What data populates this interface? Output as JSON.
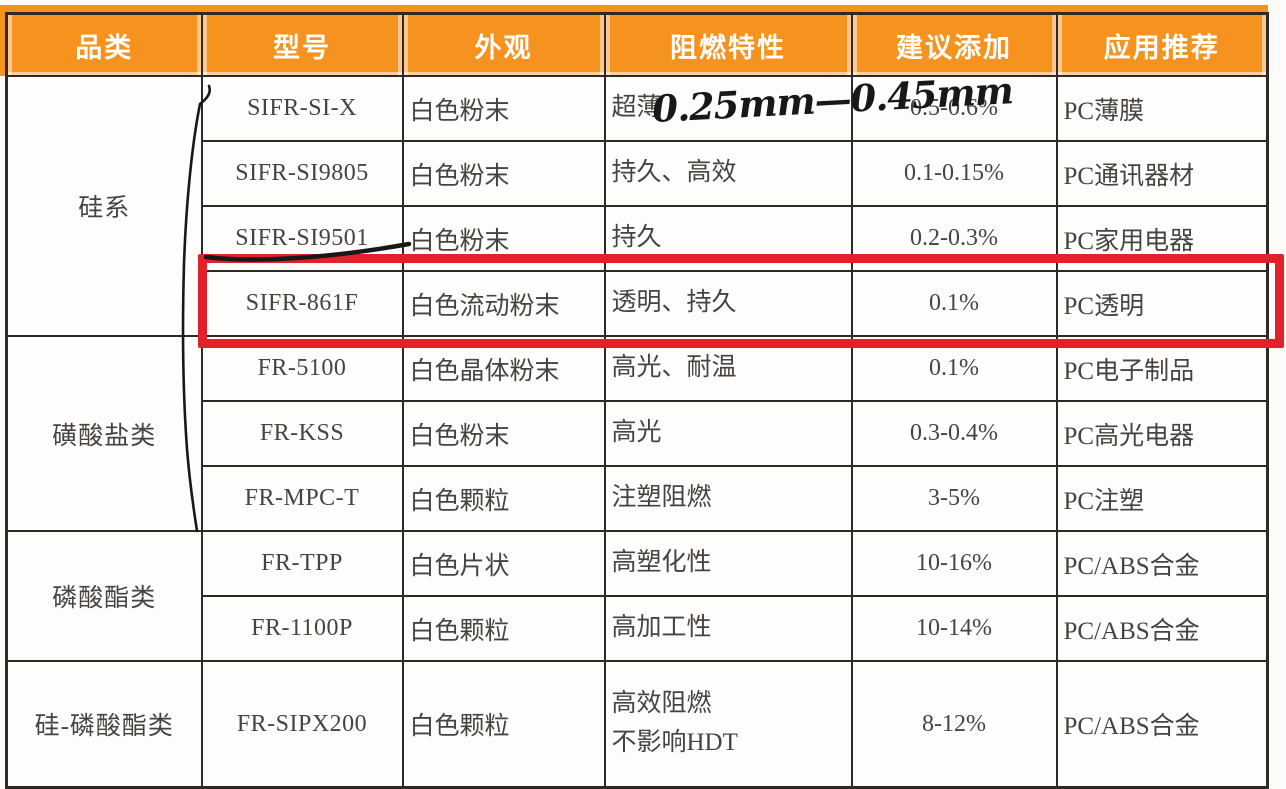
{
  "table": {
    "headers": [
      "品类",
      "型号",
      "外观",
      "阻燃特性",
      "建议添加",
      "应用推荐"
    ],
    "groups": [
      {
        "category": "硅系",
        "rows": [
          {
            "model": "SIFR-SI-X",
            "appearance": "白色粉末",
            "feature": "超薄",
            "dosage": "0.5-0.6%",
            "application": "PC薄膜",
            "highlighted": false
          },
          {
            "model": "SIFR-SI9805",
            "appearance": "白色粉末",
            "feature": "持久、高效",
            "dosage": "0.1-0.15%",
            "application": "PC通讯器材",
            "highlighted": false
          },
          {
            "model": "SIFR-SI9501",
            "appearance": "白色粉末",
            "feature": "持久",
            "dosage": "0.2-0.3%",
            "application": "PC家用电器",
            "highlighted": false
          },
          {
            "model": "SIFR-861F",
            "appearance": "白色流动粉末",
            "feature": "透明、持久",
            "dosage": "0.1%",
            "application": "PC透明",
            "highlighted": true
          }
        ]
      },
      {
        "category": "磺酸盐类",
        "rows": [
          {
            "model": "FR-5100",
            "appearance": "白色晶体粉末",
            "feature": "高光、耐温",
            "dosage": "0.1%",
            "application": "PC电子制品",
            "highlighted": false
          },
          {
            "model": "FR-KSS",
            "appearance": "白色粉末",
            "feature": "高光",
            "dosage": "0.3-0.4%",
            "application": "PC高光电器",
            "highlighted": false
          },
          {
            "model": "FR-MPC-T",
            "appearance": "白色颗粒",
            "feature": "注塑阻燃",
            "dosage": "3-5%",
            "application": "PC注塑",
            "highlighted": false
          }
        ]
      },
      {
        "category": "磷酸酯类",
        "rows": [
          {
            "model": "FR-TPP",
            "appearance": "白色片状",
            "feature": "高塑化性",
            "dosage": "10-16%",
            "application": "PC/ABS合金",
            "highlighted": false
          },
          {
            "model": "FR-1100P",
            "appearance": "白色颗粒",
            "feature": "高加工性",
            "dosage": "10-14%",
            "application": "PC/ABS合金",
            "highlighted": false
          }
        ]
      },
      {
        "category": "硅-磷酸酯类",
        "rows": [
          {
            "model": "FR-SIPX200",
            "appearance": "白色颗粒",
            "feature": "高效阻燃\n不影响HDT",
            "dosage": "8-12%",
            "application": "PC/ABS合金",
            "highlighted": false
          }
        ]
      }
    ]
  },
  "annotations": {
    "handwritten_note": "0.25mm—0.45mm",
    "handwritten_underline_target": "SIFR-SI9501",
    "highlight_box_row": "SIFR-861F"
  },
  "colors": {
    "header_bg": "#f6921e",
    "header_text": "#ffffff",
    "table_border": "#2e2a26",
    "body_text": "#474340",
    "highlight_red": "#e2222a",
    "handwriting_ink": "#181818"
  }
}
